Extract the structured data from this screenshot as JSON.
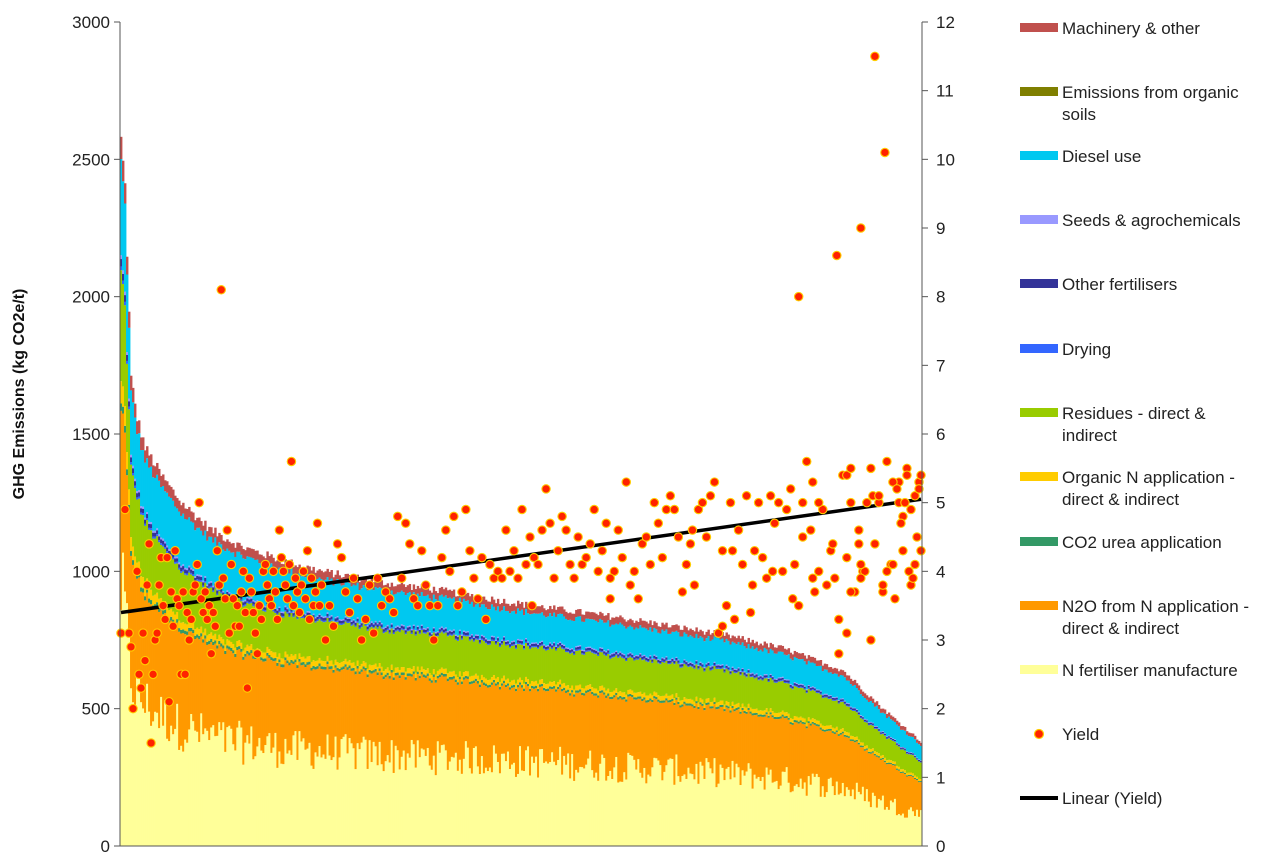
{
  "chart_data": {
    "type": "bar",
    "title": "",
    "xlabel": "",
    "ylabel": "GHG Emissions (kg CO2e/t)",
    "y2label": "",
    "ylim": [
      0,
      3000
    ],
    "y2lim": [
      0,
      12
    ],
    "yticks": [
      "0",
      "500",
      "1000",
      "1500",
      "2000",
      "2500",
      "3000"
    ],
    "y2ticks": [
      "0",
      "1",
      "2",
      "3",
      "4",
      "5",
      "6",
      "7",
      "8",
      "9",
      "10",
      "11",
      "12"
    ],
    "stacked": true,
    "grid": false,
    "legend_position": "right",
    "sorted": "descending total emissions",
    "x_count": 400,
    "total_profile": {
      "x_index": [
        0,
        2,
        5,
        8,
        12,
        20,
        30,
        45,
        60,
        80,
        100,
        130,
        160,
        200,
        250,
        300,
        330,
        360,
        380,
        399
      ],
      "total": [
        2570,
        2400,
        1700,
        1560,
        1450,
        1350,
        1250,
        1150,
        1090,
        1040,
        1000,
        960,
        930,
        880,
        830,
        770,
        720,
        640,
        500,
        380
      ]
    },
    "share_profile": {
      "x_index": [
        0,
        30,
        100,
        200,
        300,
        360,
        399
      ],
      "n_fertiliser_manufacture": [
        0.35,
        0.34,
        0.34,
        0.35,
        0.34,
        0.33,
        0.3
      ],
      "n2o_from_n_application": [
        0.25,
        0.28,
        0.3,
        0.3,
        0.3,
        0.3,
        0.3
      ],
      "co2_urea_application": [
        0.01,
        0.01,
        0.01,
        0.01,
        0.01,
        0.01,
        0.01
      ],
      "organic_n_application": [
        0.03,
        0.02,
        0.02,
        0.02,
        0.02,
        0.02,
        0.02
      ],
      "residues": [
        0.15,
        0.14,
        0.14,
        0.14,
        0.15,
        0.15,
        0.16
      ],
      "drying": [
        0.005,
        0.005,
        0.005,
        0.005,
        0.005,
        0.005,
        0.005
      ],
      "other_fertilisers": [
        0.01,
        0.01,
        0.01,
        0.01,
        0.01,
        0.01,
        0.01
      ],
      "seeds_agrochemicals": [
        0.005,
        0.005,
        0.005,
        0.005,
        0.005,
        0.005,
        0.005
      ],
      "diesel_use": [
        0.13,
        0.14,
        0.13,
        0.12,
        0.12,
        0.13,
        0.14
      ],
      "emissions_from_organic_soils": [
        0.0,
        0.0,
        0.0,
        0.0,
        0.0,
        0.0,
        0.0
      ],
      "machinery_other": [
        0.03,
        0.03,
        0.03,
        0.03,
        0.03,
        0.03,
        0.03
      ]
    },
    "series": [
      {
        "name": "Machinery & other",
        "key": "machinery_other",
        "color": "#c0504d"
      },
      {
        "name": "Emissions from organic soils",
        "key": "emissions_from_organic_soils",
        "color": "#7f7f00"
      },
      {
        "name": "Diesel use",
        "key": "diesel_use",
        "color": "#00c8f0"
      },
      {
        "name": "Seeds & agrochemicals",
        "key": "seeds_agrochemicals",
        "color": "#9999ff"
      },
      {
        "name": "Other fertilisers",
        "key": "other_fertilisers",
        "color": "#333399"
      },
      {
        "name": "Drying",
        "key": "drying",
        "color": "#3366ff"
      },
      {
        "name": "Residues - direct & indirect",
        "key": "residues",
        "color": "#99cc00"
      },
      {
        "name": "Organic N application - direct & indirect",
        "key": "organic_n_application",
        "color": "#ffcc00"
      },
      {
        "name": "CO2 urea application",
        "key": "co2_urea_application",
        "color": "#339966"
      },
      {
        "name": "N2O from N application - direct & indirect",
        "key": "n2o_from_n_application",
        "color": "#ff9900"
      },
      {
        "name": "N fertiliser manufacture",
        "key": "n_fertiliser_manufacture",
        "color": "#ffff99"
      }
    ],
    "yield_series": {
      "name": "Yield",
      "axis": "secondary",
      "color": "#ff2200",
      "outline": "#ffcc00",
      "points": [
        [
          0,
          3.1
        ],
        [
          2,
          4.9
        ],
        [
          4,
          3.1
        ],
        [
          5,
          2.9
        ],
        [
          6,
          2.0
        ],
        [
          8,
          4.0
        ],
        [
          9,
          2.5
        ],
        [
          10,
          2.3
        ],
        [
          11,
          3.1
        ],
        [
          12,
          2.7
        ],
        [
          13,
          3.8
        ],
        [
          14,
          4.4
        ],
        [
          15,
          1.5
        ],
        [
          16,
          2.5
        ],
        [
          17,
          3.0
        ],
        [
          18,
          3.1
        ],
        [
          19,
          3.8
        ],
        [
          20,
          4.2
        ],
        [
          21,
          3.5
        ],
        [
          22,
          3.3
        ],
        [
          23,
          4.2
        ],
        [
          24,
          2.1
        ],
        [
          25,
          3.7
        ],
        [
          26,
          3.2
        ],
        [
          27,
          4.3
        ],
        [
          28,
          3.6
        ],
        [
          29,
          3.5
        ],
        [
          30,
          2.5
        ],
        [
          31,
          3.7
        ],
        [
          32,
          2.5
        ],
        [
          33,
          3.4
        ],
        [
          34,
          3.0
        ],
        [
          35,
          3.3
        ],
        [
          36,
          3.7
        ],
        [
          37,
          3.8
        ],
        [
          38,
          4.1
        ],
        [
          39,
          5.0
        ],
        [
          40,
          3.6
        ],
        [
          41,
          3.4
        ],
        [
          42,
          3.7
        ],
        [
          43,
          3.3
        ],
        [
          44,
          3.5
        ],
        [
          45,
          2.8
        ],
        [
          46,
          3.4
        ],
        [
          47,
          3.2
        ],
        [
          48,
          4.3
        ],
        [
          49,
          3.8
        ],
        [
          50,
          8.1
        ],
        [
          51,
          3.9
        ],
        [
          52,
          3.6
        ],
        [
          53,
          4.6
        ],
        [
          54,
          3.1
        ],
        [
          55,
          4.1
        ],
        [
          56,
          3.6
        ],
        [
          57,
          3.2
        ],
        [
          58,
          3.5
        ],
        [
          59,
          3.2
        ],
        [
          60,
          3.7
        ],
        [
          61,
          4.0
        ],
        [
          62,
          3.4
        ],
        [
          63,
          2.3
        ],
        [
          64,
          3.9
        ],
        [
          65,
          3.7
        ],
        [
          66,
          3.4
        ],
        [
          67,
          3.1
        ],
        [
          68,
          2.8
        ],
        [
          69,
          3.5
        ],
        [
          70,
          3.3
        ],
        [
          71,
          4.0
        ],
        [
          72,
          4.1
        ],
        [
          73,
          3.8
        ],
        [
          74,
          3.6
        ],
        [
          75,
          3.5
        ],
        [
          76,
          4.0
        ],
        [
          77,
          3.7
        ],
        [
          78,
          3.3
        ],
        [
          79,
          4.6
        ],
        [
          80,
          4.2
        ],
        [
          81,
          4.0
        ],
        [
          82,
          3.8
        ],
        [
          83,
          3.6
        ],
        [
          84,
          4.1
        ],
        [
          85,
          5.6
        ],
        [
          86,
          3.5
        ],
        [
          87,
          3.9
        ],
        [
          88,
          3.7
        ],
        [
          89,
          3.4
        ],
        [
          90,
          3.8
        ],
        [
          91,
          4.0
        ],
        [
          92,
          3.6
        ],
        [
          93,
          4.3
        ],
        [
          94,
          3.3
        ],
        [
          95,
          3.9
        ],
        [
          96,
          3.5
        ],
        [
          97,
          3.7
        ],
        [
          98,
          4.7
        ],
        [
          99,
          3.5
        ],
        [
          100,
          3.8
        ],
        [
          102,
          3.0
        ],
        [
          104,
          3.5
        ],
        [
          106,
          3.2
        ],
        [
          108,
          4.4
        ],
        [
          110,
          4.2
        ],
        [
          112,
          3.7
        ],
        [
          114,
          3.4
        ],
        [
          116,
          3.9
        ],
        [
          118,
          3.6
        ],
        [
          120,
          3.0
        ],
        [
          122,
          3.3
        ],
        [
          124,
          3.8
        ],
        [
          126,
          3.1
        ],
        [
          128,
          3.9
        ],
        [
          130,
          3.5
        ],
        [
          132,
          3.7
        ],
        [
          134,
          3.6
        ],
        [
          136,
          3.4
        ],
        [
          138,
          4.8
        ],
        [
          140,
          3.9
        ],
        [
          142,
          4.7
        ],
        [
          144,
          4.4
        ],
        [
          146,
          3.6
        ],
        [
          148,
          3.5
        ],
        [
          150,
          4.3
        ],
        [
          152,
          3.8
        ],
        [
          154,
          3.5
        ],
        [
          156,
          3.0
        ],
        [
          158,
          3.5
        ],
        [
          160,
          4.2
        ],
        [
          162,
          4.6
        ],
        [
          164,
          4.0
        ],
        [
          166,
          4.8
        ],
        [
          168,
          3.5
        ],
        [
          170,
          3.7
        ],
        [
          172,
          4.9
        ],
        [
          174,
          4.3
        ],
        [
          176,
          3.9
        ],
        [
          178,
          3.6
        ],
        [
          180,
          4.2
        ],
        [
          182,
          3.3
        ],
        [
          184,
          4.1
        ],
        [
          186,
          3.9
        ],
        [
          188,
          4.0
        ],
        [
          190,
          3.9
        ],
        [
          192,
          4.6
        ],
        [
          194,
          4.0
        ],
        [
          196,
          4.3
        ],
        [
          198,
          3.9
        ],
        [
          200,
          4.9
        ],
        [
          202,
          4.1
        ],
        [
          204,
          4.5
        ],
        [
          206,
          4.2
        ],
        [
          208,
          4.1
        ],
        [
          210,
          4.6
        ],
        [
          212,
          5.2
        ],
        [
          214,
          4.7
        ],
        [
          216,
          3.9
        ],
        [
          218,
          4.3
        ],
        [
          220,
          4.8
        ],
        [
          222,
          4.6
        ],
        [
          224,
          4.1
        ],
        [
          226,
          3.9
        ],
        [
          228,
          4.5
        ],
        [
          230,
          4.1
        ],
        [
          232,
          4.2
        ],
        [
          234,
          4.4
        ],
        [
          236,
          4.9
        ],
        [
          238,
          4.0
        ],
        [
          240,
          4.3
        ],
        [
          242,
          4.7
        ],
        [
          244,
          3.6
        ],
        [
          246,
          4.0
        ],
        [
          248,
          4.6
        ],
        [
          250,
          4.2
        ],
        [
          252,
          5.3
        ],
        [
          254,
          3.8
        ],
        [
          256,
          4.0
        ],
        [
          258,
          3.6
        ],
        [
          260,
          4.4
        ],
        [
          262,
          4.5
        ],
        [
          264,
          4.1
        ],
        [
          266,
          5.0
        ],
        [
          268,
          4.7
        ],
        [
          270,
          4.2
        ],
        [
          272,
          4.9
        ],
        [
          274,
          5.1
        ],
        [
          276,
          4.9
        ],
        [
          278,
          4.5
        ],
        [
          280,
          3.7
        ],
        [
          282,
          4.1
        ],
        [
          284,
          4.4
        ],
        [
          286,
          3.8
        ],
        [
          288,
          4.9
        ],
        [
          290,
          5.0
        ],
        [
          292,
          4.5
        ],
        [
          294,
          5.1
        ],
        [
          296,
          5.3
        ],
        [
          298,
          3.1
        ],
        [
          300,
          4.3
        ],
        [
          302,
          3.5
        ],
        [
          304,
          5.0
        ],
        [
          306,
          3.3
        ],
        [
          308,
          4.6
        ],
        [
          310,
          4.1
        ],
        [
          312,
          5.1
        ],
        [
          314,
          3.4
        ],
        [
          316,
          4.3
        ],
        [
          318,
          5.0
        ],
        [
          320,
          4.2
        ],
        [
          322,
          3.9
        ],
        [
          324,
          5.1
        ],
        [
          326,
          4.7
        ],
        [
          328,
          5.0
        ],
        [
          330,
          4.0
        ],
        [
          332,
          4.9
        ],
        [
          334,
          5.2
        ],
        [
          336,
          4.1
        ],
        [
          338,
          3.5
        ],
        [
          340,
          5.0
        ],
        [
          342,
          5.6
        ],
        [
          344,
          4.6
        ],
        [
          346,
          3.7
        ],
        [
          348,
          4.0
        ],
        [
          350,
          4.9
        ],
        [
          352,
          3.8
        ],
        [
          354,
          4.3
        ],
        [
          356,
          3.9
        ],
        [
          358,
          3.3
        ],
        [
          360,
          5.4
        ],
        [
          362,
          4.2
        ],
        [
          364,
          5.0
        ],
        [
          366,
          3.7
        ],
        [
          368,
          4.6
        ],
        [
          370,
          4.0
        ],
        [
          372,
          5.0
        ],
        [
          374,
          3.0
        ],
        [
          376,
          4.4
        ],
        [
          378,
          5.0
        ],
        [
          380,
          3.7
        ],
        [
          382,
          5.6
        ],
        [
          384,
          4.1
        ],
        [
          386,
          3.6
        ],
        [
          388,
          5.0
        ],
        [
          390,
          4.3
        ],
        [
          392,
          5.5
        ],
        [
          394,
          3.8
        ],
        [
          396,
          4.1
        ],
        [
          398,
          5.3
        ],
        [
          205,
          3.5
        ],
        [
          244,
          3.9
        ],
        [
          285,
          4.6
        ],
        [
          300,
          3.2
        ],
        [
          305,
          4.3
        ],
        [
          315,
          3.8
        ],
        [
          325,
          4.0
        ],
        [
          335,
          3.6
        ],
        [
          340,
          4.5
        ],
        [
          345,
          3.9
        ],
        [
          348,
          5.0
        ],
        [
          355,
          4.4
        ],
        [
          358,
          2.8
        ],
        [
          362,
          3.1
        ],
        [
          364,
          3.7
        ],
        [
          368,
          4.4
        ],
        [
          371,
          4.0
        ],
        [
          375,
          5.1
        ],
        [
          380,
          3.8
        ],
        [
          382,
          4.0
        ],
        [
          385,
          4.1
        ],
        [
          388,
          5.3
        ],
        [
          390,
          4.8
        ],
        [
          392,
          5.4
        ],
        [
          394,
          4.9
        ],
        [
          396,
          5.1
        ],
        [
          398,
          5.2
        ],
        [
          399,
          4.3
        ],
        [
          338,
          8.0
        ],
        [
          357,
          8.6
        ],
        [
          369,
          9.0
        ],
        [
          376,
          11.5
        ],
        [
          381,
          10.1
        ],
        [
          345,
          5.3
        ],
        [
          362,
          5.4
        ],
        [
          364,
          5.5
        ],
        [
          369,
          4.1
        ],
        [
          374,
          5.5
        ],
        [
          378,
          5.1
        ],
        [
          385,
          5.3
        ],
        [
          387,
          5.2
        ],
        [
          389,
          4.7
        ],
        [
          391,
          5.0
        ],
        [
          393,
          4.0
        ],
        [
          395,
          3.9
        ],
        [
          397,
          4.5
        ],
        [
          399,
          5.4
        ],
        [
          369,
          3.9
        ]
      ]
    },
    "trendline": {
      "name": "Linear (Yield)",
      "axis": "secondary",
      "color": "#000000",
      "start": [
        0,
        3.4
      ],
      "end": [
        399,
        5.05
      ]
    }
  }
}
